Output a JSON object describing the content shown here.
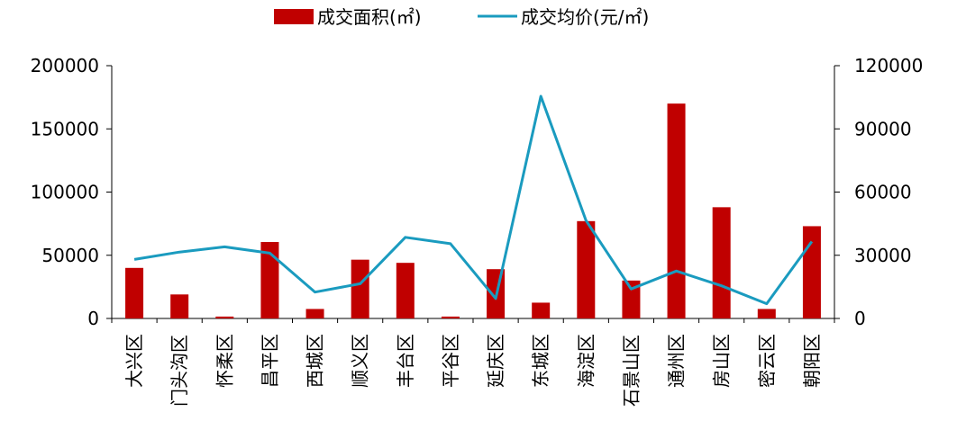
{
  "chart_data": {
    "type": "bar+line",
    "categories": [
      "大兴区",
      "门头沟区",
      "怀柔区",
      "昌平区",
      "西城区",
      "顺义区",
      "丰台区",
      "平谷区",
      "延庆区",
      "东城区",
      "海淀区",
      "石景山区",
      "通州区",
      "房山区",
      "密云区",
      "朝阳区"
    ],
    "series": [
      {
        "name": "成交面积(㎡)",
        "type": "bar",
        "axis": "left",
        "color": "#c00000",
        "values": [
          40000,
          19000,
          1500,
          60500,
          7500,
          46500,
          44000,
          1500,
          39000,
          12500,
          77000,
          30000,
          170000,
          88000,
          7500,
          73000
        ]
      },
      {
        "name": "成交均价(元/㎡)",
        "type": "line",
        "axis": "right",
        "color": "#1a9bbf",
        "values": [
          28000,
          31500,
          34000,
          31000,
          12500,
          16500,
          38500,
          35500,
          9500,
          105500,
          46500,
          14000,
          22500,
          15500,
          7000,
          36500
        ]
      }
    ],
    "y_left": {
      "min": 0,
      "max": 200000,
      "ticks": [
        "0",
        "50000",
        "100000",
        "150000",
        "200000"
      ],
      "tick_values": [
        0,
        50000,
        100000,
        150000,
        200000
      ]
    },
    "y_right": {
      "min": 0,
      "max": 120000,
      "ticks": [
        "0",
        "30000",
        "60000",
        "90000",
        "120000"
      ],
      "tick_values": [
        0,
        30000,
        60000,
        90000,
        120000
      ]
    },
    "legend_position": "top-center",
    "grid": false
  }
}
